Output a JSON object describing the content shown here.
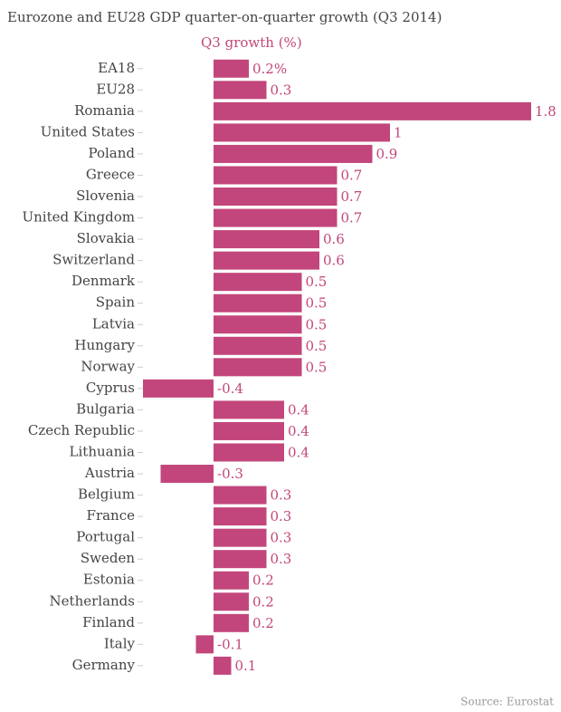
{
  "chart_data": {
    "type": "bar",
    "orientation": "horizontal",
    "title": "Eurozone and EU28 GDP quarter-on-quarter growth (Q3 2014)",
    "x_label": "Q3 growth (%)",
    "source": "Source: Eurostat",
    "categories": [
      "EA18",
      "EU28",
      "Romania",
      "United States",
      "Poland",
      "Greece",
      "Slovenia",
      "United Kingdom",
      "Slovakia",
      "Switzerland",
      "Denmark",
      "Spain",
      "Latvia",
      "Hungary",
      "Norway",
      "Cyprus",
      "Bulgaria",
      "Czech Republic",
      "Lithuania",
      "Austria",
      "Belgium",
      "France",
      "Portugal",
      "Sweden",
      "Estonia",
      "Netherlands",
      "Finland",
      "Italy",
      "Germany"
    ],
    "values": [
      0.2,
      0.3,
      1.8,
      1,
      0.9,
      0.7,
      0.7,
      0.7,
      0.6,
      0.6,
      0.5,
      0.5,
      0.5,
      0.5,
      0.5,
      -0.4,
      0.4,
      0.4,
      0.4,
      -0.3,
      0.3,
      0.3,
      0.3,
      0.3,
      0.2,
      0.2,
      0.2,
      -0.1,
      0.1
    ],
    "value_labels": [
      "0.2%",
      "0.3",
      "1.8",
      "1",
      "0.9",
      "0.7",
      "0.7",
      "0.7",
      "0.6",
      "0.6",
      "0.5",
      "0.5",
      "0.5",
      "0.5",
      "0.5",
      "-0.4",
      "0.4",
      "0.4",
      "0.4",
      "-0.3",
      "0.3",
      "0.3",
      "0.3",
      "0.3",
      "0.2",
      "0.2",
      "0.2",
      "-0.1",
      "0.1"
    ],
    "color": "#c2467b",
    "xlim": [
      -0.4,
      1.8
    ]
  }
}
